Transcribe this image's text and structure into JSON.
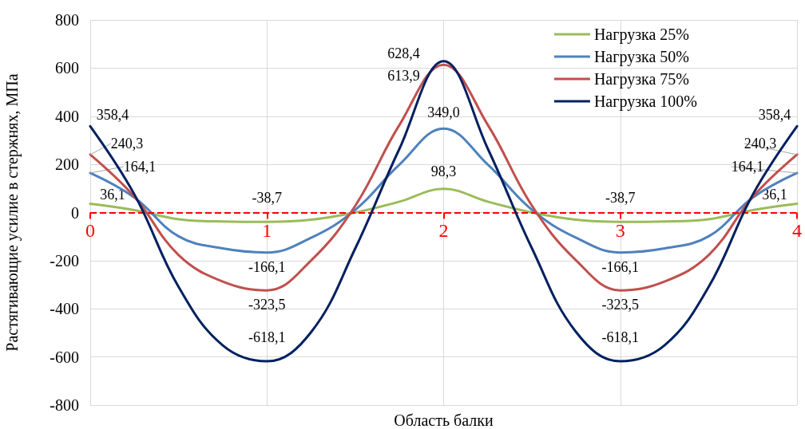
{
  "chart_data": {
    "type": "line",
    "xlabel": "Область балки",
    "ylabel": "Растягивающие усилие в стержнях, МПа",
    "x": [
      0,
      0.25,
      0.5,
      0.75,
      1,
      1.25,
      1.5,
      1.75,
      2,
      2.25,
      2.5,
      2.75,
      3,
      3.25,
      3.5,
      3.75,
      4
    ],
    "series": [
      {
        "name": "Нагрузка 25%",
        "color": "#9bbb59",
        "values": [
          36.1,
          10,
          -28,
          -37,
          -38.7,
          -30,
          0,
          45,
          98.3,
          45,
          0,
          -30,
          -38.7,
          -37,
          -28,
          10,
          36.1
        ],
        "value_labels": [
          "36,1",
          null,
          null,
          null,
          "-38,7",
          null,
          null,
          null,
          "98,3",
          null,
          null,
          null,
          "-38,7",
          null,
          null,
          null,
          "36,1"
        ]
      },
      {
        "name": "Нагрузка 50%",
        "color": "#4f81bd",
        "values": [
          164.1,
          62,
          -99,
          -149,
          -166.1,
          -105,
          11,
          199,
          349.0,
          199,
          11,
          -105,
          -166.1,
          -149,
          -99,
          62,
          164.1
        ],
        "value_labels": [
          "164,1",
          null,
          null,
          null,
          "-166,1",
          null,
          null,
          null,
          "349,0",
          null,
          null,
          null,
          "-166,1",
          null,
          null,
          null,
          "164,1"
        ]
      },
      {
        "name": "Нагрузка 75%",
        "color": "#c0504d",
        "values": [
          240.3,
          65,
          -177,
          -287,
          -323.5,
          -199,
          28,
          364,
          613.9,
          364,
          28,
          -199,
          -323.5,
          -287,
          -177,
          65,
          240.3
        ],
        "value_labels": [
          "240,3",
          null,
          null,
          null,
          "-323,5",
          null,
          null,
          null,
          "613,9",
          null,
          null,
          null,
          "-323,5",
          null,
          null,
          null,
          "240,3"
        ]
      },
      {
        "name": "Нагрузка 100%",
        "color": "#002060",
        "values": [
          358.4,
          75,
          -309,
          -552,
          -618.1,
          -497,
          -149,
          265,
          628.4,
          265,
          -149,
          -497,
          -618.1,
          -552,
          -309,
          75,
          358.4
        ],
        "value_labels": [
          "358,4",
          null,
          null,
          null,
          "-618,1",
          null,
          null,
          null,
          "628,4",
          null,
          null,
          null,
          "-618,1",
          null,
          null,
          null,
          "358,4"
        ]
      }
    ],
    "xlim": [
      0,
      4
    ],
    "xticks": [
      0,
      1,
      2,
      3,
      4
    ],
    "ylim": [
      -800,
      800
    ],
    "yticks": [
      -800,
      -600,
      -400,
      -200,
      0,
      200,
      400,
      600,
      800
    ],
    "ref_lines": [
      {
        "axis": "y",
        "value": 0,
        "color": "#ff0000",
        "line_style": "dashed"
      }
    ],
    "grid": true,
    "legend": "top right",
    "marker": "none",
    "line_style": "solid"
  }
}
